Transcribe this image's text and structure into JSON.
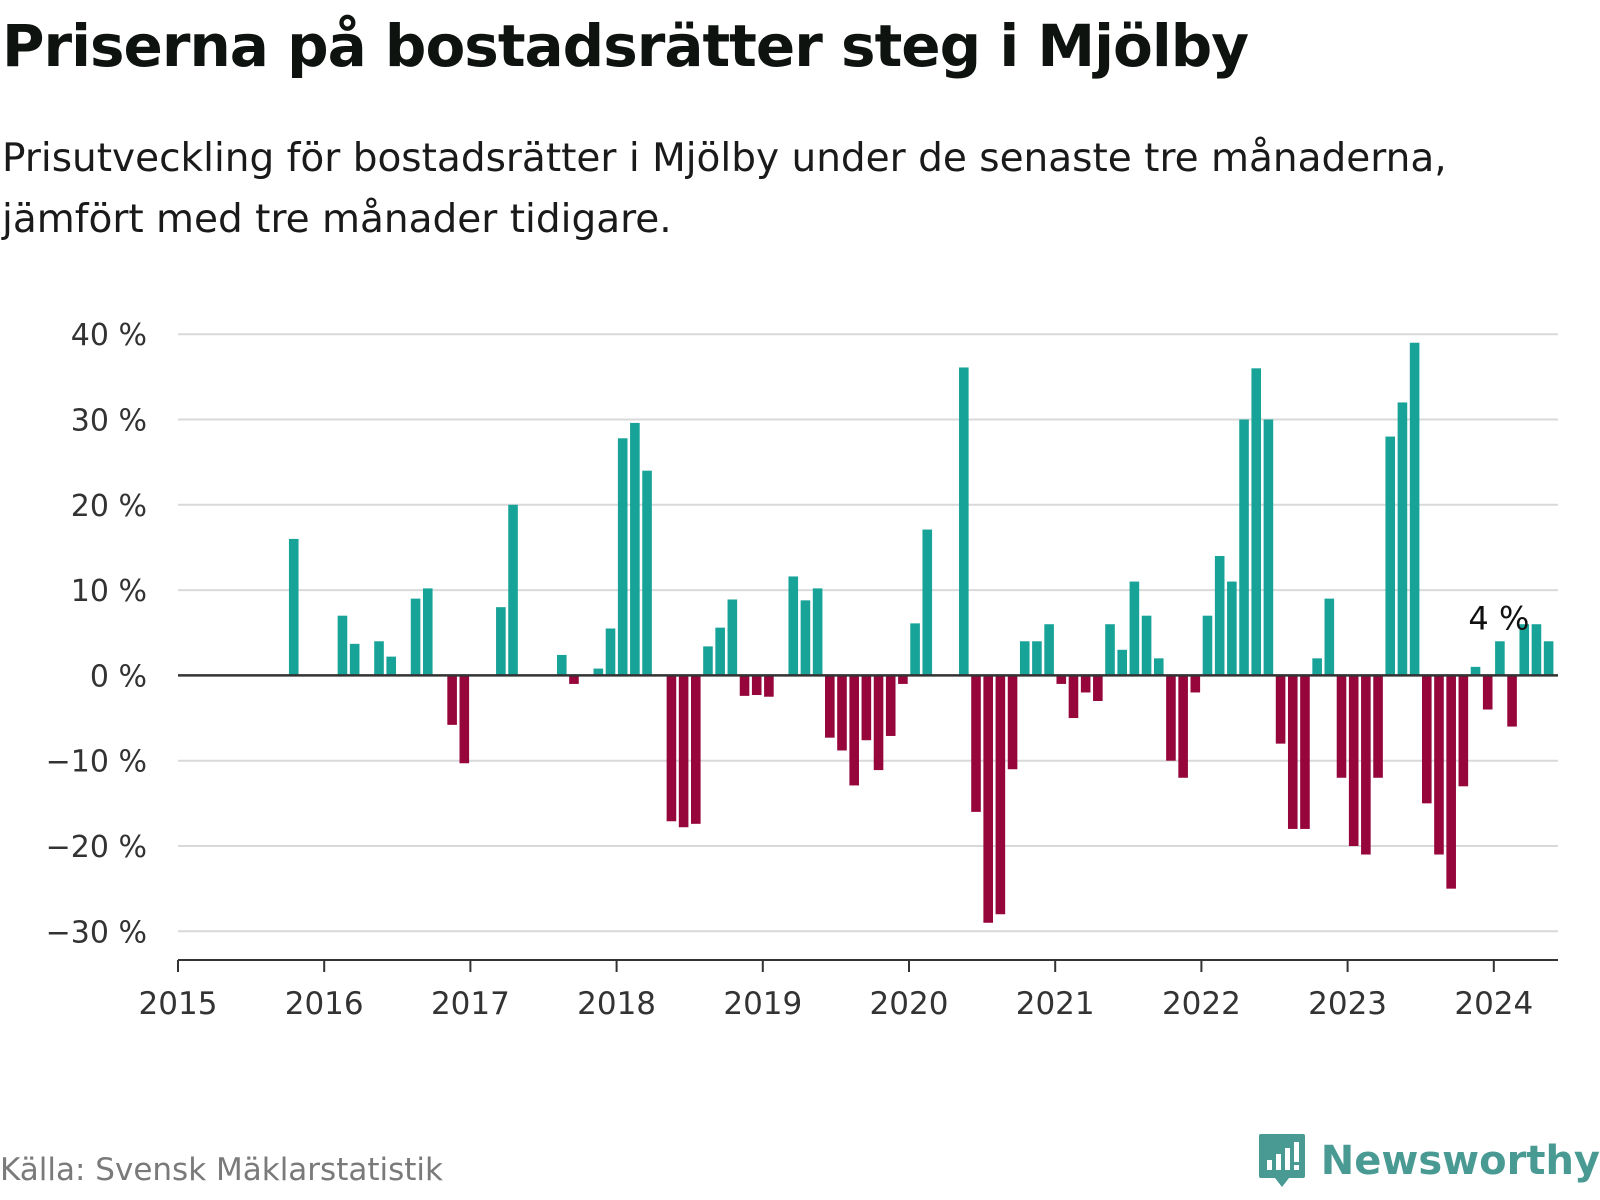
{
  "title": "Priserna på bostadsrätter steg i Mjölby",
  "subtitle": "Prisutveckling för bostadsrätter i Mjölby under de senaste tre månaderna, jämfört med tre månader tidigare.",
  "source": "Källa: Svensk Mäklarstatistik",
  "brand": "Newsworthy",
  "colors": {
    "positive": "#17a398",
    "negative": "#96063b",
    "grid": "#d9d9d9",
    "axis": "#333333",
    "brand": "#4a9a94"
  },
  "chart_data": {
    "type": "bar",
    "title": "Priserna på bostadsrätter steg i Mjölby",
    "xlabel": "",
    "ylabel": "",
    "ylim": [
      -33,
      42
    ],
    "yticks": [
      40,
      30,
      20,
      10,
      0,
      -10,
      -20,
      -30
    ],
    "ytick_labels": [
      "40 %",
      "30 %",
      "20 %",
      "10 %",
      "0 %",
      "−10 %",
      "−20 %",
      "−30 %"
    ],
    "xticks": [
      "2015",
      "2016",
      "2017",
      "2018",
      "2019",
      "2020",
      "2021",
      "2022",
      "2023",
      "2024"
    ],
    "x_start": 2015,
    "bar_unit": "month",
    "annotation": {
      "label": "4 %",
      "month_index": 108
    },
    "values": [
      null,
      null,
      null,
      null,
      null,
      null,
      null,
      null,
      null,
      16,
      null,
      null,
      null,
      7,
      3.7,
      null,
      4,
      2.2,
      null,
      9,
      10.2,
      null,
      -5.8,
      -10.3,
      null,
      null,
      8,
      20,
      null,
      null,
      null,
      2.4,
      -1,
      null,
      0.8,
      5.5,
      27.8,
      29.6,
      24,
      null,
      -17.1,
      -17.8,
      -17.4,
      3.4,
      5.6,
      8.9,
      -2.4,
      -2.3,
      -2.5,
      null,
      11.6,
      8.8,
      10.2,
      -7.3,
      -8.8,
      -12.9,
      -7.6,
      -11.1,
      -7.1,
      -1,
      6.1,
      17.1,
      null,
      null,
      36.1,
      -16,
      -29,
      -28,
      -11,
      4,
      4,
      6,
      -1,
      -5,
      -2,
      -3,
      6,
      3,
      11,
      7,
      2,
      -10,
      -12,
      -2,
      7,
      14,
      11,
      30,
      36,
      30,
      -8,
      -18,
      -18,
      2,
      9,
      -12,
      -20,
      -21,
      -12,
      28,
      32,
      39,
      -15,
      -21,
      -25,
      -13,
      1,
      -4,
      4,
      -6,
      6,
      6,
      4
    ]
  }
}
